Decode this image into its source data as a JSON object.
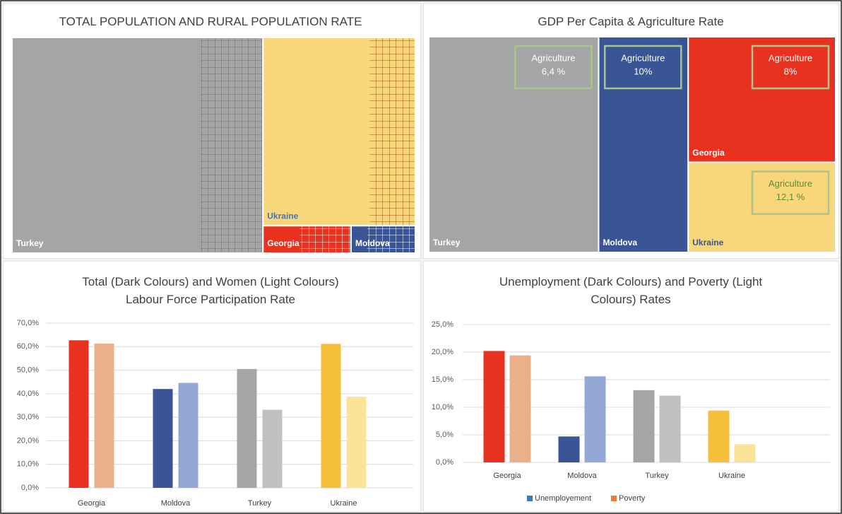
{
  "chart_data": [
    {
      "type": "treemap",
      "title": "TOTAL POPULATION AND RURAL POPULATION RATE",
      "categories": [
        "Turkey",
        "Ukraine",
        "Georgia",
        "Moldova"
      ],
      "values": [
        83,
        44,
        3.7,
        2.7
      ],
      "colors": [
        "#a5a5a5",
        "#f7d77a",
        "#e8321f",
        "#3a5595"
      ],
      "label_colors": [
        "#ffffff",
        "#4472c4",
        "#ffffff",
        "#ffffff"
      ],
      "rural": [
        25,
        30,
        58,
        75
      ],
      "hatch_colors": [
        "#6e6e6e",
        "#a0521d",
        "#ffffff",
        "#ffffff"
      ]
    },
    {
      "type": "treemap",
      "title": "GDP Per Capita & Agriculture Rate",
      "categories": [
        "Turkey",
        "Moldova",
        "Georgia",
        "Ukraine"
      ],
      "values": [
        9100,
        4800,
        4600,
        3300
      ],
      "colors": [
        "#a5a5a5",
        "#3a5595",
        "#e8321f",
        "#f7d77a"
      ],
      "label_colors": [
        "#ffffff",
        "#ffffff",
        "#ffffff",
        "#3a5595"
      ],
      "annotation_titles": [
        "Agriculture",
        "Agriculture",
        "Agriculture",
        "Agriculture"
      ],
      "agriculture": [
        6.4,
        10,
        8,
        12.1
      ],
      "agriculture_labels": [
        "6,4 %",
        "10%",
        "8%",
        "12,1 %"
      ],
      "annotation_text_colors": [
        "#ffffff",
        "#ffffff",
        "#ffffff",
        "#5f8a3a"
      ],
      "annotation_border_color": "#a9c48c"
    },
    {
      "type": "bar",
      "title": "Total (Dark Colours) and Women (Light Colours) Labour Force Participation Rate",
      "categories": [
        "Georgia",
        "Moldova",
        "Turkey",
        "Ukraine"
      ],
      "series": [
        {
          "values": [
            62.7,
            42,
            50.5,
            61.2
          ],
          "colors": [
            "#e8321f",
            "#3a5595",
            "#a5a5a5",
            "#f5bf3c"
          ]
        },
        {
          "values": [
            61.3,
            44.6,
            33.2,
            38.7
          ],
          "colors": [
            "#e9b08a",
            "#94a8d8",
            "#c0c0c0",
            "#fce39a"
          ]
        }
      ],
      "ylim": [
        0,
        70
      ],
      "yticks": [
        {
          "value": 0,
          "label": "0,0%"
        },
        {
          "value": 10,
          "label": "10,0%"
        },
        {
          "value": 20,
          "label": "20,0%"
        },
        {
          "value": 30,
          "label": "30,0%"
        },
        {
          "value": 40,
          "label": "40,0%"
        },
        {
          "value": 50,
          "label": "50,0%"
        },
        {
          "value": 60,
          "label": "60,0%"
        },
        {
          "value": 70,
          "label": "70,0%"
        }
      ],
      "grid": true
    },
    {
      "type": "bar",
      "title": "Unemployment (Dark Colours) and Poverty (Light Colours) Rates",
      "categories": [
        "Georgia",
        "Moldova",
        "Turkey",
        "Ukraine"
      ],
      "series": [
        {
          "name": "Unemployement",
          "color": "#4472c4",
          "values": [
            20.2,
            4.7,
            13.1,
            9.4
          ],
          "colors": [
            "#e8321f",
            "#3a5595",
            "#a5a5a5",
            "#f5bf3c"
          ]
        },
        {
          "name": "Poverty",
          "color": "#ed7d31",
          "values": [
            19.4,
            15.6,
            12.1,
            3.3
          ],
          "colors": [
            "#e9b08a",
            "#94a8d8",
            "#c0c0c0",
            "#fce39a"
          ]
        }
      ],
      "ylim": [
        0,
        25
      ],
      "yticks": [
        {
          "value": 0,
          "label": "0,0%"
        },
        {
          "value": 5,
          "label": "5,0%"
        },
        {
          "value": 10,
          "label": "10,0%"
        },
        {
          "value": 15,
          "label": "15,0%"
        },
        {
          "value": 20,
          "label": "20,0%"
        },
        {
          "value": 25,
          "label": "25,0%"
        }
      ],
      "grid": true,
      "legend": "bottom"
    }
  ]
}
